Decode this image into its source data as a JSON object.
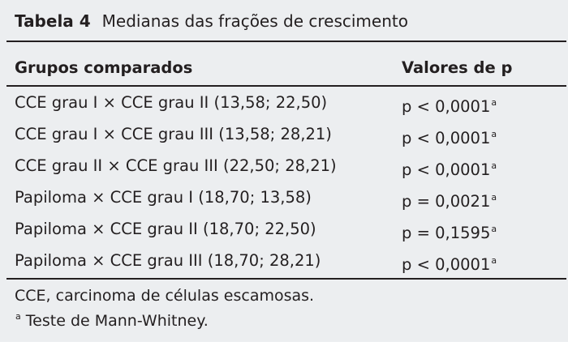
{
  "table": {
    "label": "Tabela 4",
    "title": "Medianas das frações de crescimento",
    "header": [
      "Grupos comparados",
      "Valores de p"
    ],
    "rows": [
      [
        "CCE grau I × CCE grau II (13,58; 22,50)",
        "p < 0,0001",
        "a"
      ],
      [
        "CCE grau I × CCE grau III (13,58; 28,21)",
        "p < 0,0001",
        "a"
      ],
      [
        "CCE grau II × CCE grau III (22,50; 28,21)",
        "p < 0,0001",
        "a"
      ],
      [
        "Papiloma × CCE grau I (18,70; 13,58)",
        "p = 0,0021",
        "a"
      ],
      [
        "Papiloma × CCE grau II (18,70; 22,50)",
        "p = 0,1595",
        "a"
      ],
      [
        "Papiloma × CCE grau III (18,70; 28,21)",
        "p < 0,0001",
        "a"
      ]
    ],
    "notes": [
      {
        "text": "CCE, carcinoma de células escamosas."
      },
      {
        "marker": "a",
        "text": "Teste de Mann-Whitney."
      }
    ]
  }
}
